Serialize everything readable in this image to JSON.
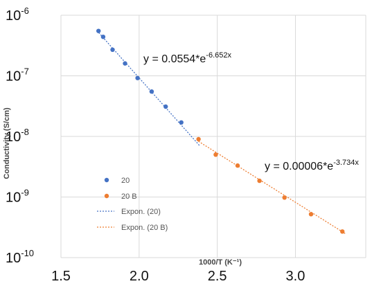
{
  "chart_data": {
    "type": "scatter",
    "title": "",
    "xlabel": "1000/T (K⁻¹)",
    "ylabel": "Conductivity (S/cm)",
    "xlim": [
      1.5,
      3.45
    ],
    "ylim": [
      1e-10,
      1e-06
    ],
    "yscale": "log",
    "grid": true,
    "legend_position": "bottom-left",
    "x_ticks": [
      {
        "value": 1.5,
        "label": "1.5"
      },
      {
        "value": 2.0,
        "label": "2.0"
      },
      {
        "value": 2.5,
        "label": "2.5"
      },
      {
        "value": 3.0,
        "label": "3.0"
      }
    ],
    "y_ticks": [
      {
        "value": 1e-06,
        "base": "10",
        "exp": "-6"
      },
      {
        "value": 1e-07,
        "base": "10",
        "exp": "-7"
      },
      {
        "value": 1e-08,
        "base": "10",
        "exp": "-8"
      },
      {
        "value": 1e-09,
        "base": "10",
        "exp": "-9"
      },
      {
        "value": 1e-10,
        "base": "10",
        "exp": "-10"
      }
    ],
    "series": [
      {
        "name": "20",
        "color": "#4472c4",
        "x": [
          1.74,
          1.77,
          1.83,
          1.91,
          1.99,
          2.08,
          2.17,
          2.27
        ],
        "y": [
          5.5e-07,
          4.4e-07,
          2.7e-07,
          1.6e-07,
          9.2e-08,
          5.5e-08,
          3.1e-08,
          1.7e-08
        ]
      },
      {
        "name": "20 B",
        "color": "#ed7d31",
        "x": [
          2.38,
          2.49,
          2.63,
          2.77,
          2.93,
          3.1,
          3.3
        ],
        "y": [
          9e-09,
          5e-09,
          3.3e-09,
          1.85e-09,
          9.8e-10,
          5.2e-10,
          2.7e-10
        ]
      }
    ],
    "trendlines": [
      {
        "name": "Expon. (20)",
        "color": "#4472c4",
        "a": 0.0554,
        "b": -6.652,
        "x_range": [
          1.73,
          2.39
        ],
        "equation": {
          "prefix": "y = 0.0554*e",
          "exponent": "-6.652x"
        }
      },
      {
        "name": "Expon. (20 B)",
        "color": "#ed7d31",
        "a": 6e-05,
        "b": -3.734,
        "x_range": [
          2.38,
          3.32
        ],
        "equation": {
          "prefix": "y = 0.00006*e",
          "exponent": "-3.734x"
        }
      }
    ]
  }
}
